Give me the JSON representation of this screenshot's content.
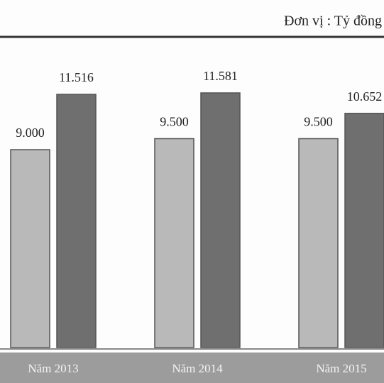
{
  "chart_data": {
    "type": "bar",
    "subtitle": "Đơn vị : Tỷ đồng",
    "categories": [
      "Năm 2013",
      "Năm 2014",
      "Năm 2015"
    ],
    "series": [
      {
        "color": "#b9b9b9",
        "values": [
          9000,
          9500,
          9500
        ],
        "value_labels": [
          "9.000",
          "9.500",
          "9.500"
        ]
      },
      {
        "color": "#6f6f6f",
        "values": [
          11516,
          11581,
          10652
        ],
        "value_labels": [
          "11.516",
          "11.581",
          "10.652"
        ]
      }
    ],
    "ylim": [
      0,
      13000
    ]
  }
}
